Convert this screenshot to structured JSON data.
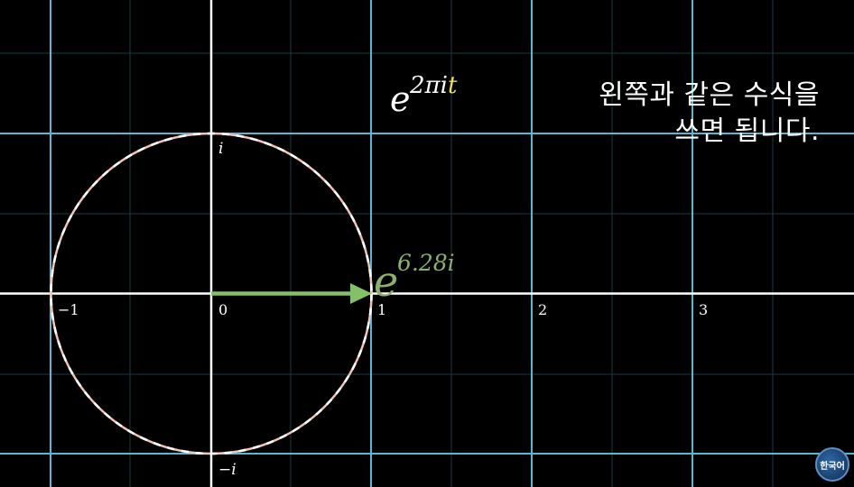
{
  "formula": {
    "base": "e",
    "exponent_prefix": "2πi",
    "exponent_var": "t",
    "var_color": "#f4e04d"
  },
  "vector_label": {
    "base": "e",
    "exponent": "6.28i",
    "color": "#8ab26b"
  },
  "axis_labels": {
    "neg_one": "−1",
    "zero": "0",
    "one": "1",
    "two": "2",
    "three": "3",
    "imag_pos": "i",
    "imag_neg": "−i"
  },
  "subtitle": {
    "line1": "왼쪽과 같은 수식을",
    "line2": "쓰면 됩니다."
  },
  "badge": {
    "label": "한국어"
  },
  "colors": {
    "grid_major": "#58c4dd",
    "axis": "#ffffff",
    "circle_dash_a": "#f6c3b6",
    "circle_dash_b": "#ffffff",
    "vector": "#83c167"
  }
}
